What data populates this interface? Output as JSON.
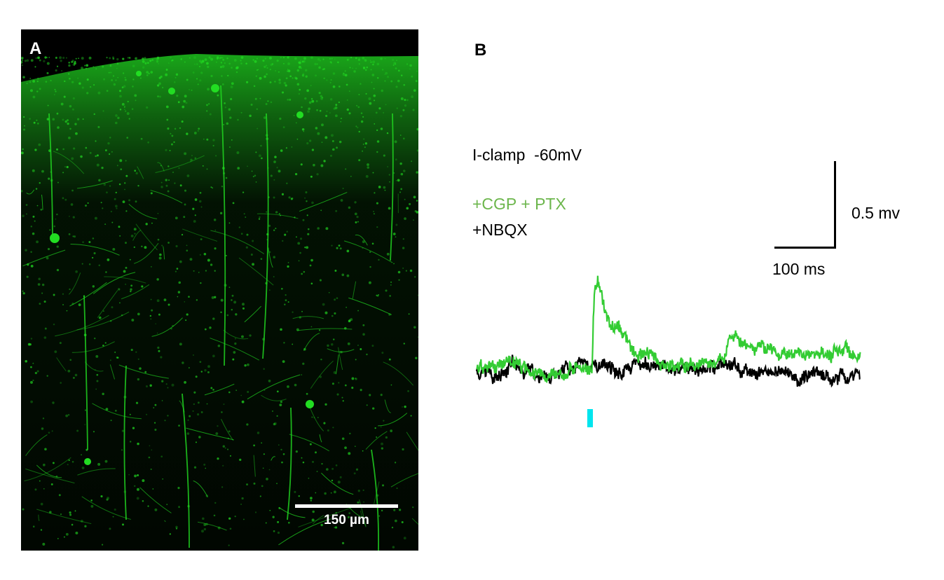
{
  "panel_a": {
    "label": "A",
    "scale_bar_label": "150 µm",
    "fluorescence_color": "#22dd22"
  },
  "panel_b": {
    "label": "B",
    "recording_mode": "I-clamp  -60mV",
    "conditions": [
      {
        "label": "+CGP + PTX",
        "color": "#6cb64c",
        "trace_color": "#33cc33"
      },
      {
        "label": "+NBQX",
        "color": "#000000",
        "trace_color": "#000000"
      }
    ],
    "scale_bar": {
      "voltage_label": "0.5 mv",
      "time_label": "100 ms"
    },
    "stimulus_color": "#00e5ee"
  }
}
